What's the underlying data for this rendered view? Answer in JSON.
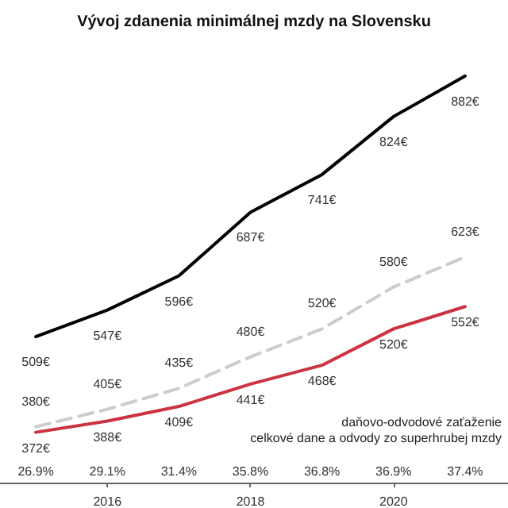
{
  "chart_data": {
    "type": "line",
    "title": "Vývoj zdanenia minimálnej mzdy na Slovensku",
    "x": [
      2015,
      2016,
      2017,
      2018,
      2019,
      2020,
      2021
    ],
    "xlim": [
      2014.5,
      2021.6
    ],
    "xticks": [
      2016,
      2018,
      2020
    ],
    "series": [
      {
        "color": "#000000",
        "values": [
          509,
          547,
          596,
          687,
          741,
          824,
          882
        ],
        "value_labels": [
          "509€",
          "547€",
          "596€",
          "687€",
          "741€",
          "824€",
          "882€"
        ]
      },
      {
        "color": "#cccccc",
        "line_style": "dashed",
        "values": [
          380,
          405,
          435,
          480,
          520,
          580,
          623
        ],
        "value_labels": [
          "380€",
          "405€",
          "435€",
          "480€",
          "520€",
          "580€",
          "623€"
        ]
      },
      {
        "color": "#cc3340",
        "values": [
          372,
          388,
          409,
          441,
          468,
          520,
          552
        ],
        "value_labels": [
          "372€",
          "388€",
          "409€",
          "441€",
          "468€",
          "520€",
          "552€"
        ]
      }
    ],
    "annotations": [
      "26.9%",
      "29.1%",
      "31.4%",
      "35.8%",
      "36.8%",
      "36.9%",
      "37.4%",
      "daňovo-odvodové zaťaženie",
      "celkové dane a odvody zo superhrubej mzdy"
    ],
    "grid": false,
    "marker": "none",
    "tick_labels": "x"
  }
}
